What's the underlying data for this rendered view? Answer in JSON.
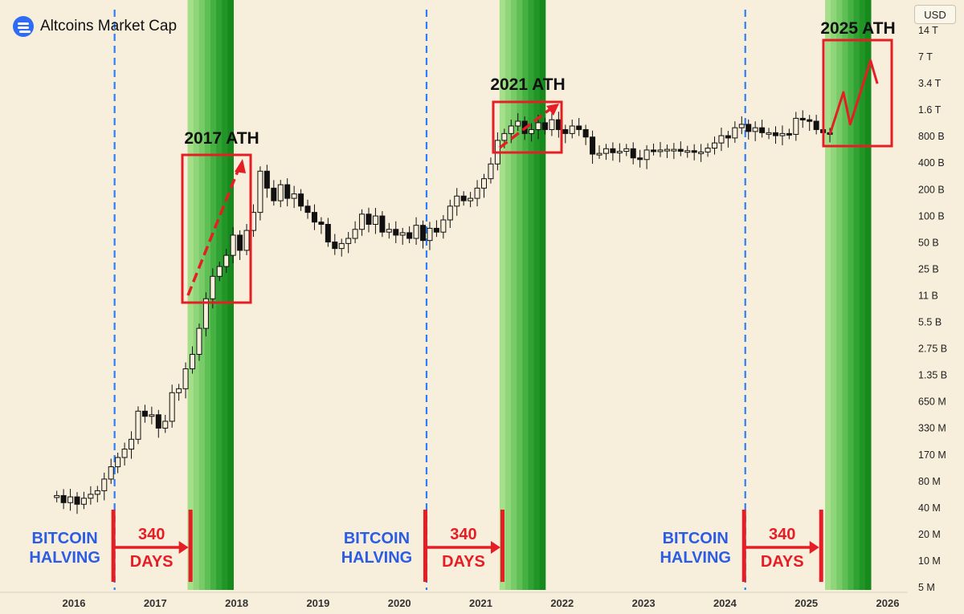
{
  "header": {
    "title": "Altcoins Market Cap",
    "logo_icon": "altcoin-logo-icon",
    "currency": "USD"
  },
  "chart_data": {
    "type": "candlestick",
    "title": "Altcoins Market Cap",
    "y_scale": "log",
    "y_ticks": [
      "14 T",
      "7 T",
      "3.4 T",
      "1.6 T",
      "800 B",
      "400 B",
      "200 B",
      "100 B",
      "50 B",
      "25 B",
      "11 B",
      "5.5 B",
      "2.75 B",
      "1.35 B",
      "650 M",
      "330 M",
      "170 M",
      "80 M",
      "40 M",
      "20 M",
      "10 M",
      "5 M"
    ],
    "x_ticks": [
      "2016",
      "2017",
      "2018",
      "2019",
      "2020",
      "2021",
      "2022",
      "2023",
      "2024",
      "2025",
      "2026"
    ],
    "halvings": [
      {
        "label_line1": "BITCOIN",
        "label_line2": "HALVING",
        "days_number": "340",
        "days_word": "DAYS",
        "date": "2016-07"
      },
      {
        "label_line1": "BITCOIN",
        "label_line2": "HALVING",
        "days_number": "340",
        "days_word": "DAYS",
        "date": "2020-05"
      },
      {
        "label_line1": "BITCOIN",
        "label_line2": "HALVING",
        "days_number": "340",
        "days_word": "DAYS",
        "date": "2024-04"
      }
    ],
    "annotations": [
      "2017 ATH",
      "2021 ATH",
      "2025 ATH"
    ],
    "colors": {
      "background": "#f7eedb",
      "halving_line": "#2f7ef5",
      "highlight": "#e51d24",
      "halving_text": "#2b5ce6",
      "green_band": "#1e9a1e"
    },
    "series": [
      {
        "date": "2015-10",
        "open": 55,
        "close": 58
      },
      {
        "date": "2015-11",
        "open": 58,
        "close": 48
      },
      {
        "date": "2015-12",
        "open": 48,
        "close": 56
      },
      {
        "date": "2016-01",
        "open": 56,
        "close": 46
      },
      {
        "date": "2016-02",
        "open": 46,
        "close": 54
      },
      {
        "date": "2016-03",
        "open": 54,
        "close": 60
      },
      {
        "date": "2016-04",
        "open": 60,
        "close": 66
      },
      {
        "date": "2016-05",
        "open": 66,
        "close": 90
      },
      {
        "date": "2016-06",
        "open": 90,
        "close": 125
      },
      {
        "date": "2016-07",
        "open": 125,
        "close": 160
      },
      {
        "date": "2016-08",
        "open": 160,
        "close": 200
      },
      {
        "date": "2016-09",
        "open": 200,
        "close": 260
      },
      {
        "date": "2016-10",
        "open": 260,
        "close": 550
      },
      {
        "date": "2016-11",
        "open": 550,
        "close": 480
      },
      {
        "date": "2016-12",
        "open": 480,
        "close": 500
      },
      {
        "date": "2017-01",
        "open": 500,
        "close": 350
      },
      {
        "date": "2017-02",
        "open": 350,
        "close": 420
      },
      {
        "date": "2017-03",
        "open": 420,
        "close": 900
      },
      {
        "date": "2017-04",
        "open": 900,
        "close": 1000
      },
      {
        "date": "2017-05",
        "open": 1000,
        "close": 1700
      },
      {
        "date": "2017-06",
        "open": 1700,
        "close": 2500
      },
      {
        "date": "2017-07",
        "open": 2500,
        "close": 5000
      },
      {
        "date": "2017-08",
        "open": 5000,
        "close": 11000
      },
      {
        "date": "2017-09",
        "open": 11000,
        "close": 20000
      },
      {
        "date": "2017-10",
        "open": 20000,
        "close": 26000
      },
      {
        "date": "2017-11",
        "open": 26000,
        "close": 35000
      },
      {
        "date": "2017-12",
        "open": 35000,
        "close": 60000
      },
      {
        "date": "2018-01",
        "open": 60000,
        "close": 40000
      },
      {
        "date": "2018-02",
        "open": 40000,
        "close": 68000
      },
      {
        "date": "2018-03",
        "open": 68000,
        "close": 110000
      },
      {
        "date": "2018-04",
        "open": 110000,
        "close": 330000
      },
      {
        "date": "2018-05",
        "open": 330000,
        "close": 210000
      },
      {
        "date": "2018-06",
        "open": 210000,
        "close": 150000
      },
      {
        "date": "2018-07",
        "open": 150000,
        "close": 230000
      },
      {
        "date": "2018-08",
        "open": 230000,
        "close": 160000
      },
      {
        "date": "2018-09",
        "open": 160000,
        "close": 180000
      },
      {
        "date": "2018-10",
        "open": 180000,
        "close": 130000
      },
      {
        "date": "2018-11",
        "open": 130000,
        "close": 110000
      },
      {
        "date": "2018-12",
        "open": 110000,
        "close": 85000
      },
      {
        "date": "2019-01",
        "open": 85000,
        "close": 80000
      },
      {
        "date": "2019-02",
        "open": 80000,
        "close": 50000
      },
      {
        "date": "2019-03",
        "open": 50000,
        "close": 42000
      },
      {
        "date": "2019-04",
        "open": 42000,
        "close": 48000
      },
      {
        "date": "2019-05",
        "open": 48000,
        "close": 55000
      },
      {
        "date": "2019-06",
        "open": 55000,
        "close": 70000
      },
      {
        "date": "2019-07",
        "open": 70000,
        "close": 105000
      },
      {
        "date": "2019-08",
        "open": 105000,
        "close": 80000
      },
      {
        "date": "2019-09",
        "open": 80000,
        "close": 100000
      },
      {
        "date": "2019-10",
        "open": 100000,
        "close": 65000
      },
      {
        "date": "2019-11",
        "open": 65000,
        "close": 70000
      },
      {
        "date": "2019-12",
        "open": 70000,
        "close": 60000
      },
      {
        "date": "2020-01",
        "open": 60000,
        "close": 64000
      },
      {
        "date": "2020-02",
        "open": 64000,
        "close": 55000
      },
      {
        "date": "2020-03",
        "open": 55000,
        "close": 78000
      },
      {
        "date": "2020-04",
        "open": 78000,
        "close": 52000
      },
      {
        "date": "2020-05",
        "open": 52000,
        "close": 72000
      },
      {
        "date": "2020-06",
        "open": 72000,
        "close": 65000
      },
      {
        "date": "2020-07",
        "open": 65000,
        "close": 90000
      },
      {
        "date": "2020-08",
        "open": 90000,
        "close": 130000
      },
      {
        "date": "2020-09",
        "open": 130000,
        "close": 170000
      },
      {
        "date": "2020-10",
        "open": 170000,
        "close": 150000
      },
      {
        "date": "2020-11",
        "open": 150000,
        "close": 160000
      },
      {
        "date": "2020-12",
        "open": 160000,
        "close": 210000
      },
      {
        "date": "2021-01",
        "open": 210000,
        "close": 270000
      },
      {
        "date": "2021-02",
        "open": 270000,
        "close": 400000
      },
      {
        "date": "2021-03",
        "open": 400000,
        "close": 750000
      },
      {
        "date": "2021-04",
        "open": 750000,
        "close": 900000
      },
      {
        "date": "2021-05",
        "open": 900000,
        "close": 1100000
      },
      {
        "date": "2021-06",
        "open": 1100000,
        "close": 1250000
      },
      {
        "date": "2021-07",
        "open": 1250000,
        "close": 900000
      },
      {
        "date": "2021-08",
        "open": 900000,
        "close": 1000000
      },
      {
        "date": "2021-09",
        "open": 1000000,
        "close": 1200000
      },
      {
        "date": "2021-10",
        "open": 1200000,
        "close": 1000000
      },
      {
        "date": "2021-11",
        "open": 1000000,
        "close": 1300000
      },
      {
        "date": "2021-12",
        "open": 1300000,
        "close": 1000000
      },
      {
        "date": "2022-01",
        "open": 1000000,
        "close": 900000
      },
      {
        "date": "2022-02",
        "open": 900000,
        "close": 1100000
      },
      {
        "date": "2022-03",
        "open": 1100000,
        "close": 1000000
      },
      {
        "date": "2022-04",
        "open": 1000000,
        "close": 820000
      },
      {
        "date": "2022-05",
        "open": 820000,
        "close": 520000
      },
      {
        "date": "2022-06",
        "open": 520000,
        "close": 530000
      },
      {
        "date": "2022-07",
        "open": 530000,
        "close": 600000
      },
      {
        "date": "2022-08",
        "open": 600000,
        "close": 540000
      },
      {
        "date": "2022-09",
        "open": 540000,
        "close": 560000
      },
      {
        "date": "2022-10",
        "open": 560000,
        "close": 600000
      },
      {
        "date": "2022-11",
        "open": 600000,
        "close": 470000
      },
      {
        "date": "2022-12",
        "open": 470000,
        "close": 450000
      },
      {
        "date": "2023-01",
        "open": 450000,
        "close": 580000
      },
      {
        "date": "2023-02",
        "open": 580000,
        "close": 570000
      },
      {
        "date": "2023-03",
        "open": 570000,
        "close": 580000
      },
      {
        "date": "2023-04",
        "open": 580000,
        "close": 590000
      },
      {
        "date": "2023-05",
        "open": 590000,
        "close": 590000
      },
      {
        "date": "2023-06",
        "open": 590000,
        "close": 560000
      },
      {
        "date": "2023-07",
        "open": 560000,
        "close": 570000
      },
      {
        "date": "2023-08",
        "open": 570000,
        "close": 545000
      },
      {
        "date": "2023-09",
        "open": 545000,
        "close": 550000
      },
      {
        "date": "2023-10",
        "open": 550000,
        "close": 610000
      },
      {
        "date": "2023-11",
        "open": 610000,
        "close": 700000
      },
      {
        "date": "2023-12",
        "open": 700000,
        "close": 850000
      },
      {
        "date": "2024-01",
        "open": 850000,
        "close": 800000
      },
      {
        "date": "2024-02",
        "open": 800000,
        "close": 1050000
      },
      {
        "date": "2024-03",
        "open": 1050000,
        "close": 1150000
      },
      {
        "date": "2024-04",
        "open": 1150000,
        "close": 950000
      },
      {
        "date": "2024-05",
        "open": 950000,
        "close": 1050000
      },
      {
        "date": "2024-06",
        "open": 1050000,
        "close": 920000
      },
      {
        "date": "2024-07",
        "open": 920000,
        "close": 920000
      },
      {
        "date": "2024-08",
        "open": 920000,
        "close": 850000
      },
      {
        "date": "2024-09",
        "open": 850000,
        "close": 900000
      },
      {
        "date": "2024-10",
        "open": 900000,
        "close": 880000
      },
      {
        "date": "2024-11",
        "open": 880000,
        "close": 1350000
      },
      {
        "date": "2024-12",
        "open": 1350000,
        "close": 1300000
      },
      {
        "date": "2025-01",
        "open": 1300000,
        "close": 1250000
      },
      {
        "date": "2025-02",
        "open": 1250000,
        "close": 1000000
      },
      {
        "date": "2025-03",
        "open": 1000000,
        "close": 920000
      },
      {
        "date": "2025-04",
        "open": 920000,
        "close": 880000
      }
    ],
    "projection": [
      {
        "date": "2025-04",
        "value": 880000
      },
      {
        "date": "2025-06",
        "value": 2700000
      },
      {
        "date": "2025-07",
        "value": 1150000
      },
      {
        "date": "2025-10",
        "value": 6300000
      },
      {
        "date": "2025-11",
        "value": 3400000
      }
    ]
  }
}
